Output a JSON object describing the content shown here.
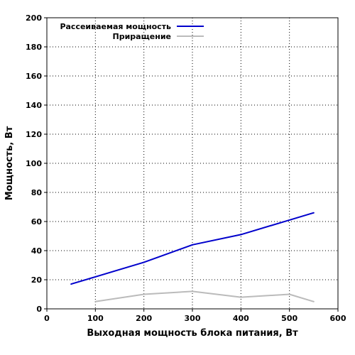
{
  "chart_data": {
    "type": "line",
    "x": [
      50,
      100,
      200,
      300,
      400,
      500,
      550
    ],
    "series": [
      {
        "name": "Рассеиваемая мощность",
        "color": "#0000cc",
        "x": [
          50,
          100,
          200,
          300,
          400,
          500,
          550
        ],
        "values": [
          17,
          22,
          32,
          44,
          51,
          61,
          66
        ]
      },
      {
        "name": "Приращение",
        "color": "#bbbbbb",
        "x": [
          100,
          200,
          300,
          400,
          500,
          550
        ],
        "values": [
          5,
          10,
          12,
          8,
          10,
          5
        ]
      }
    ],
    "xlabel": "Выходная мощность блока питания, Вт",
    "ylabel": "Мощность, Вт",
    "xlim": [
      0,
      600
    ],
    "ylim": [
      0,
      200
    ],
    "xticks": [
      "0",
      "100",
      "200",
      "300",
      "400",
      "500",
      "600"
    ],
    "yticks": [
      "0",
      "20",
      "40",
      "60",
      "80",
      "100",
      "120",
      "140",
      "160",
      "180",
      "200"
    ],
    "grid": true,
    "legend_position": "top-left"
  }
}
